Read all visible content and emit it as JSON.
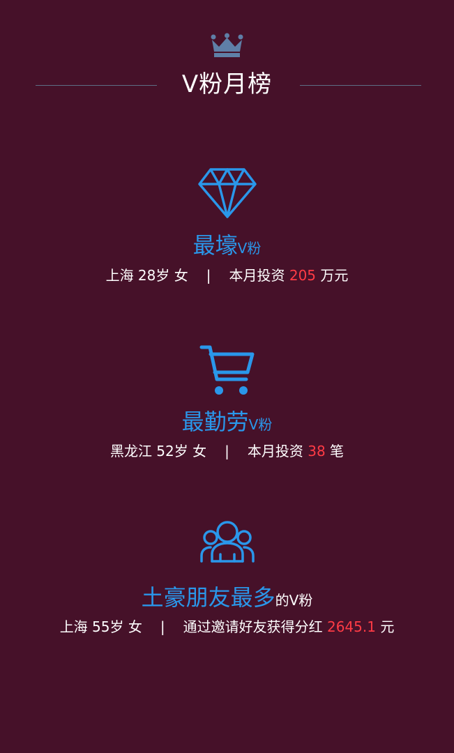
{
  "header": {
    "icon": "crown-icon",
    "title": "V粉月榜"
  },
  "colors": {
    "background": "#461129",
    "accent_blue": "#2a97ea",
    "highlight_red": "#ff3b45",
    "crown": "#5f7fa7"
  },
  "sections": [
    {
      "icon": "diamond-icon",
      "title_big": "最壕",
      "title_small": "V粉",
      "location_age_gender": "上海 28岁 女",
      "separator": "|",
      "stat_prefix": "本月投资",
      "stat_value": "205",
      "stat_suffix": "万元"
    },
    {
      "icon": "shopping-cart-icon",
      "title_big": "最勤劳",
      "title_small": "V粉",
      "location_age_gender": "黑龙江 52岁 女",
      "separator": "|",
      "stat_prefix": "本月投资",
      "stat_value": "38",
      "stat_suffix": "笔"
    },
    {
      "icon": "friends-group-icon",
      "title_big": "土豪朋友最多",
      "title_small": "的V粉",
      "location_age_gender": "上海 55岁 女",
      "separator": "|",
      "stat_prefix": "通过邀请好友获得分红",
      "stat_value": "2645.1",
      "stat_suffix": "元"
    }
  ]
}
